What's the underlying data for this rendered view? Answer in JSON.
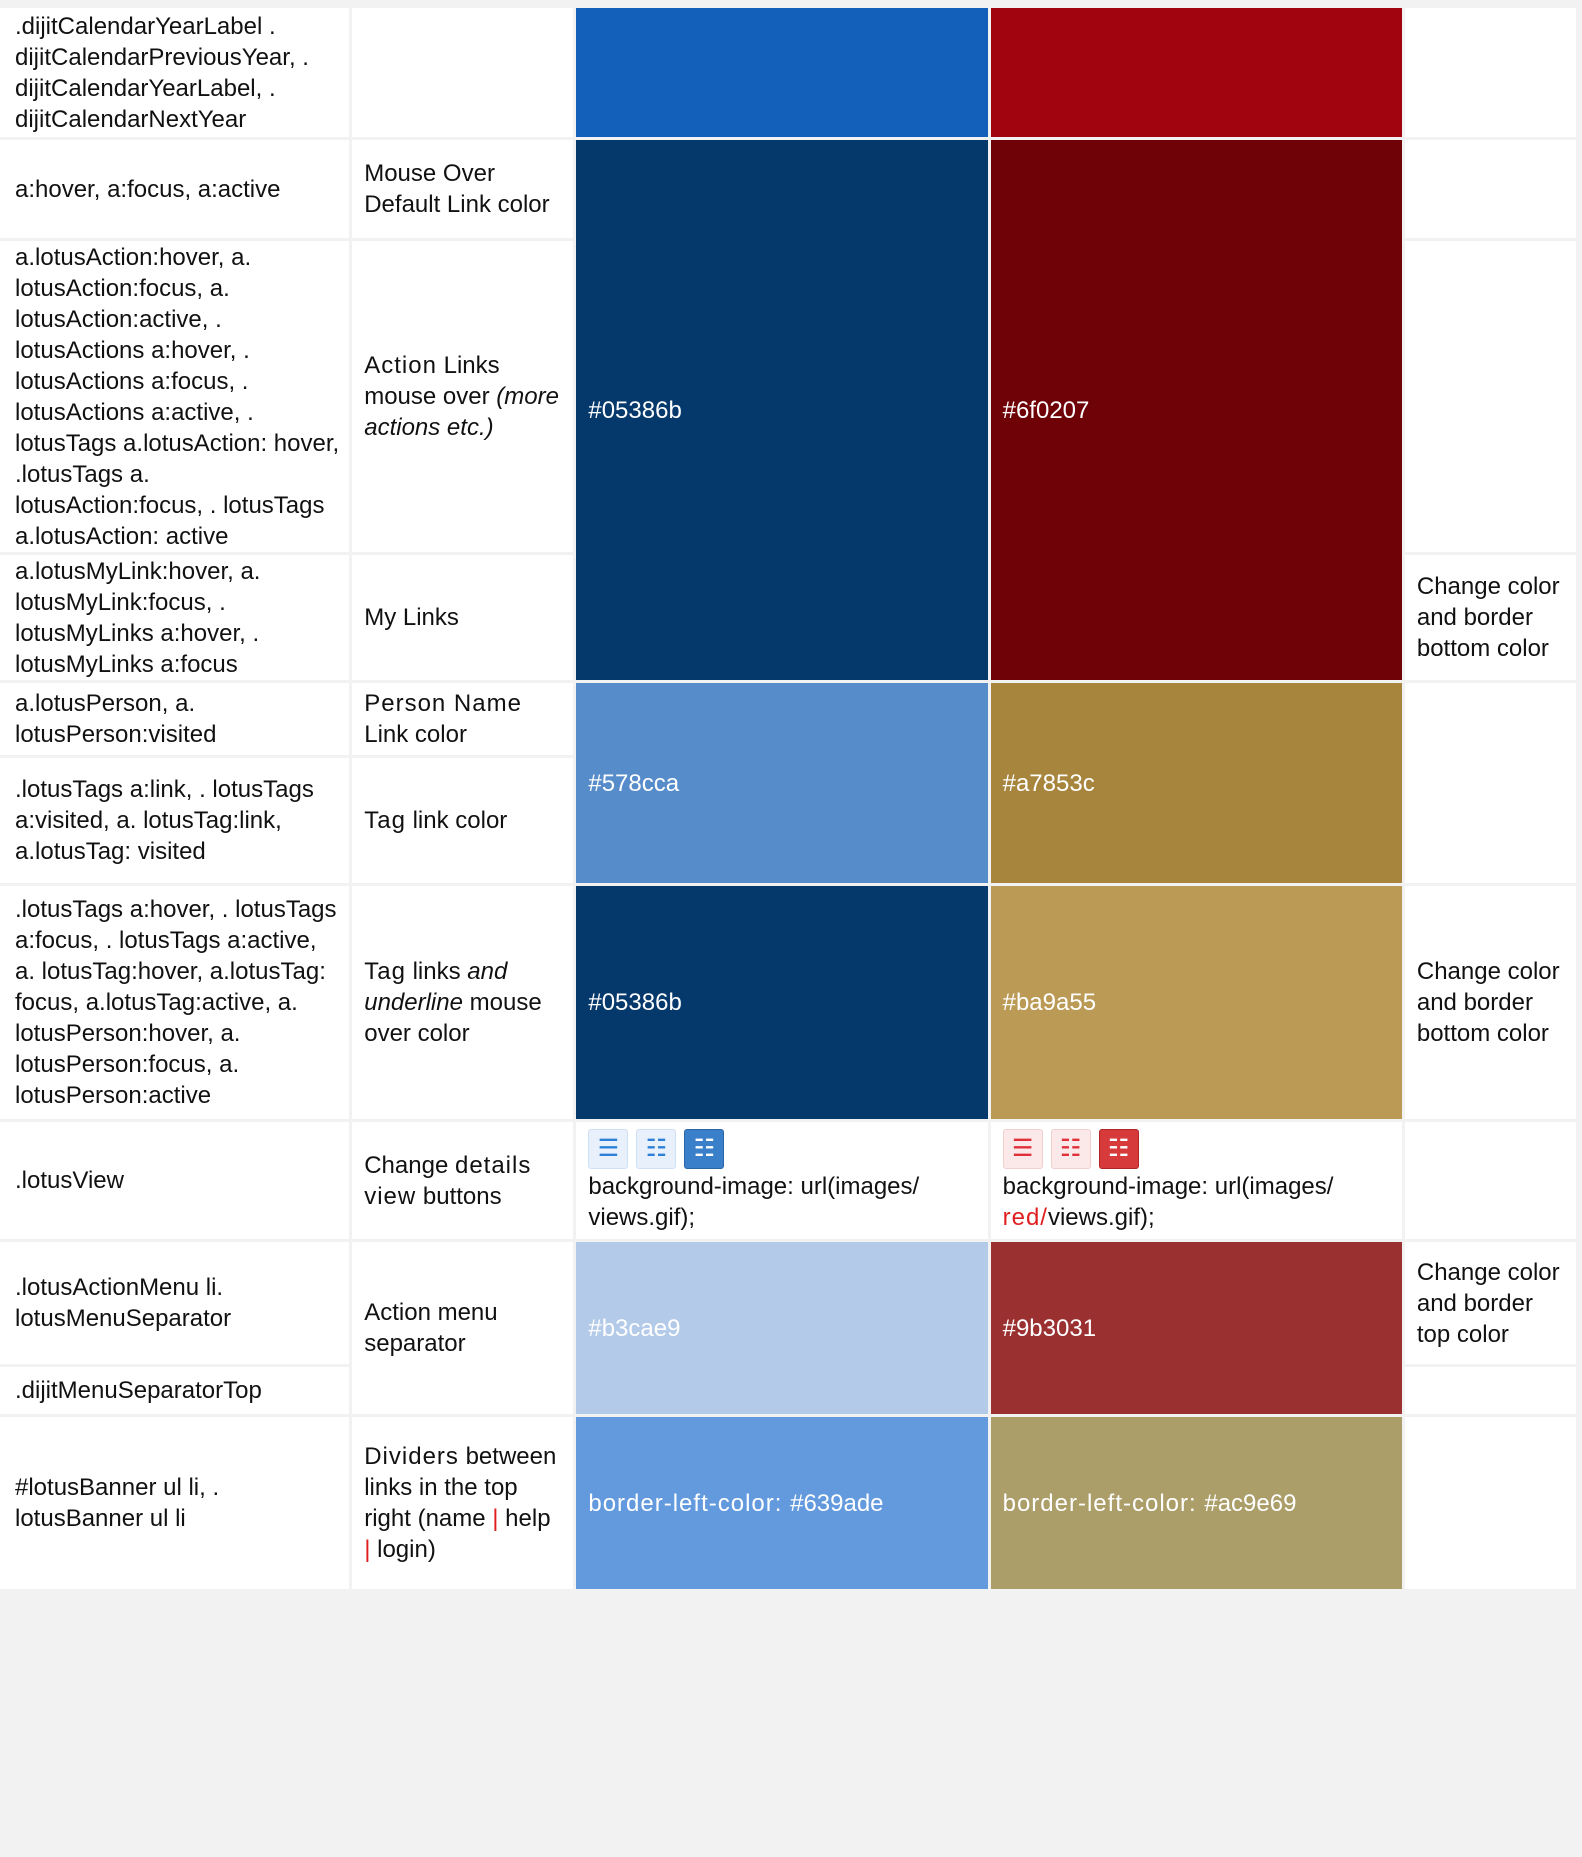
{
  "rows": [
    {
      "selector": ".dijitCalendarYearLabel . dijitCalendarPreviousYear, . dijitCalendarYearLabel, . dijitCalendarNextYear",
      "description": "",
      "default_value": "",
      "red_value": "",
      "notes": ""
    },
    {
      "selector": "a:hover, a:focus, a:active",
      "description": "Mouse Over Default Link color"
    },
    {
      "selector": "a.lotusAction:hover, a. lotusAction:focus, a. lotusAction:active, . lotusActions a:hover, . lotusActions a:focus, . lotusActions a:active, . lotusTags a.lotusAction: hover, .lotusTags a. lotusAction:focus, . lotusTags a.lotusAction: active",
      "description_prefix": "Action",
      "description_rest": " Links mouse over",
      "description_italic": "(more actions etc.)",
      "default_value": "#05386b",
      "red_value": "#6f0207"
    },
    {
      "selector": "a.lotusMyLink:hover, a. lotusMyLink:focus, . lotusMyLinks a:hover, . lotusMyLinks a:focus",
      "description": "My Links",
      "notes": "Change color and border bottom color"
    },
    {
      "selector": "a.lotusPerson, a. lotusPerson:visited",
      "description_prefix": "Person Name",
      "description_rest": " Link color",
      "default_value": "#578cca",
      "red_value": "#a7853c"
    },
    {
      "selector": ".lotusTags a:link, . lotusTags a:visited, a. lotusTag:link, a.lotusTag: visited",
      "description_prefix": "Tag",
      "description_rest": " link color"
    },
    {
      "selector": ".lotusTags a:hover, . lotusTags a:focus, . lotusTags a:active, a. lotusTag:hover, a.lotusTag: focus, a.lotusTag:active, a. lotusPerson:hover, a. lotusPerson:focus, a. lotusPerson:active",
      "description_prefix": "Tag",
      "description_rest": " links ",
      "description_italic": "and underline",
      "description_after": " mouse over color",
      "default_value": "#05386b",
      "red_value": "#ba9a55",
      "notes": "Change color and border bottom color"
    },
    {
      "selector": ".lotusView",
      "description_prefix": "Change ",
      "description_wide": "details view",
      "description_after": " buttons",
      "default_value": "background-image: url(images/ views.gif);",
      "red_value_prefix": "background-image: url(images/ ",
      "red_value_red": "red/",
      "red_value_suffix": "views.gif);",
      "icons": [
        "list-view-icon",
        "summary-view-icon",
        "details-view-icon"
      ]
    },
    {
      "selector": ".lotusActionMenu li. lotusMenuSeparator",
      "description": "Action menu separator",
      "default_value": "#b3cae9",
      "red_value": "#9b3031",
      "notes": "Change color and border top color"
    },
    {
      "selector": ".dijitMenuSeparatorTop"
    },
    {
      "selector": "#lotusBanner ul li, . lotusBanner ul li",
      "description_prefix": "Dividers",
      "description_rest": " between links in the top right (name ",
      "description_sep": "|",
      "description_mid": " help ",
      "description_end": " login)",
      "default_value_prefix": "border-left-color: ",
      "default_value": "#639ade",
      "red_value_prefix": "border-left-color: ",
      "red_value": "#ac9e69"
    }
  ],
  "colors": {
    "year_blue": "#1360bb",
    "year_red": "#a1040f",
    "hover_blue": "#05386b",
    "hover_red": "#6f0207",
    "person_blue": "#578cca",
    "person_red": "#a7853c",
    "tag_hover_blue": "#05386b",
    "tag_hover_red": "#ba9a55",
    "separator_blue": "#b3cae9",
    "separator_red": "#9b3031",
    "divider_blue": "#639ade",
    "divider_red": "#ac9e69"
  }
}
